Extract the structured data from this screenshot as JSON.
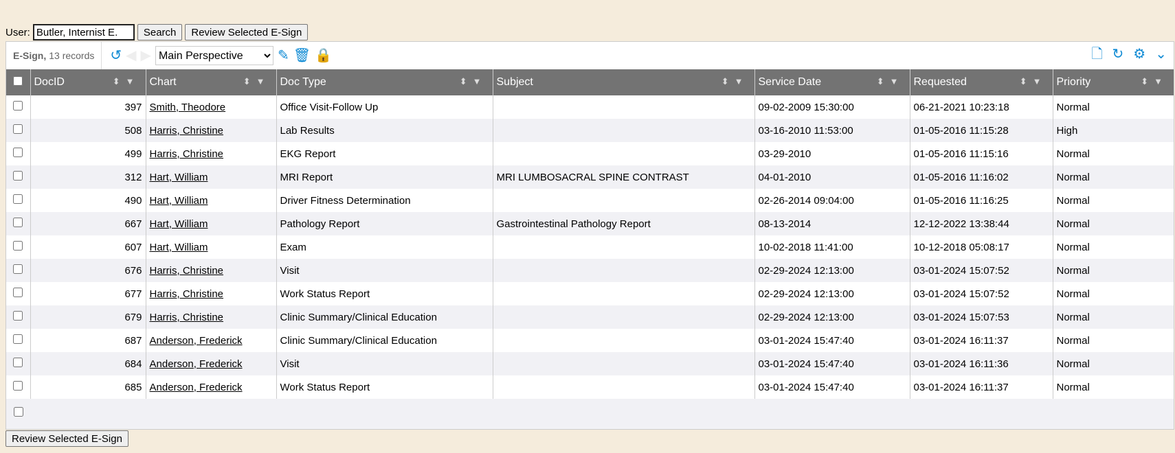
{
  "topbar": {
    "user_label": "User:",
    "user_value": "Butler, Internist E.",
    "search": "Search",
    "review": "Review Selected E-Sign"
  },
  "toolbar": {
    "title": "E-Sign,",
    "count": "13 records",
    "perspective": "Main Perspective"
  },
  "columns": [
    "DocID",
    "Chart",
    "Doc Type",
    "Subject",
    "Service Date",
    "Requested",
    "Priority"
  ],
  "rows": [
    [
      "397",
      "Smith, Theodore",
      "Office Visit-Follow Up",
      "",
      "09-02-2009 15:30:00",
      "06-21-2021 10:23:18",
      "Normal"
    ],
    [
      "508",
      "Harris, Christine",
      "Lab Results",
      "",
      "03-16-2010 11:53:00",
      "01-05-2016 11:15:28",
      "High"
    ],
    [
      "499",
      "Harris, Christine",
      "EKG Report",
      "",
      "03-29-2010",
      "01-05-2016 11:15:16",
      "Normal"
    ],
    [
      "312",
      "Hart, William",
      "MRI Report",
      "MRI LUMBOSACRAL SPINE CONTRAST",
      "04-01-2010",
      "01-05-2016 11:16:02",
      "Normal"
    ],
    [
      "490",
      "Hart, William",
      "Driver Fitness Determination",
      "",
      "02-26-2014 09:04:00",
      "01-05-2016 11:16:25",
      "Normal"
    ],
    [
      "667",
      "Hart, William",
      "Pathology Report",
      "Gastrointestinal Pathology Report",
      "08-13-2014",
      "12-12-2022 13:38:44",
      "Normal"
    ],
    [
      "607",
      "Hart, William",
      "Exam",
      "",
      "10-02-2018 11:41:00",
      "10-12-2018 05:08:17",
      "Normal"
    ],
    [
      "676",
      "Harris, Christine",
      "Visit",
      "",
      "02-29-2024 12:13:00",
      "03-01-2024 15:07:52",
      "Normal"
    ],
    [
      "677",
      "Harris, Christine",
      "Work Status Report",
      "",
      "02-29-2024 12:13:00",
      "03-01-2024 15:07:52",
      "Normal"
    ],
    [
      "679",
      "Harris, Christine",
      "Clinic Summary/Clinical Education",
      "",
      "02-29-2024 12:13:00",
      "03-01-2024 15:07:53",
      "Normal"
    ],
    [
      "687",
      "Anderson, Frederick",
      "Clinic Summary/Clinical Education",
      "",
      "03-01-2024 15:47:40",
      "03-01-2024 16:11:37",
      "Normal"
    ],
    [
      "684",
      "Anderson, Frederick",
      "Visit",
      "",
      "03-01-2024 15:47:40",
      "03-01-2024 16:11:36",
      "Normal"
    ],
    [
      "685",
      "Anderson, Frederick",
      "Work Status Report",
      "",
      "03-01-2024 15:47:40",
      "03-01-2024 16:11:37",
      "Normal"
    ]
  ],
  "bottom": {
    "review": "Review Selected E-Sign"
  },
  "accent": "#0e8ad4"
}
